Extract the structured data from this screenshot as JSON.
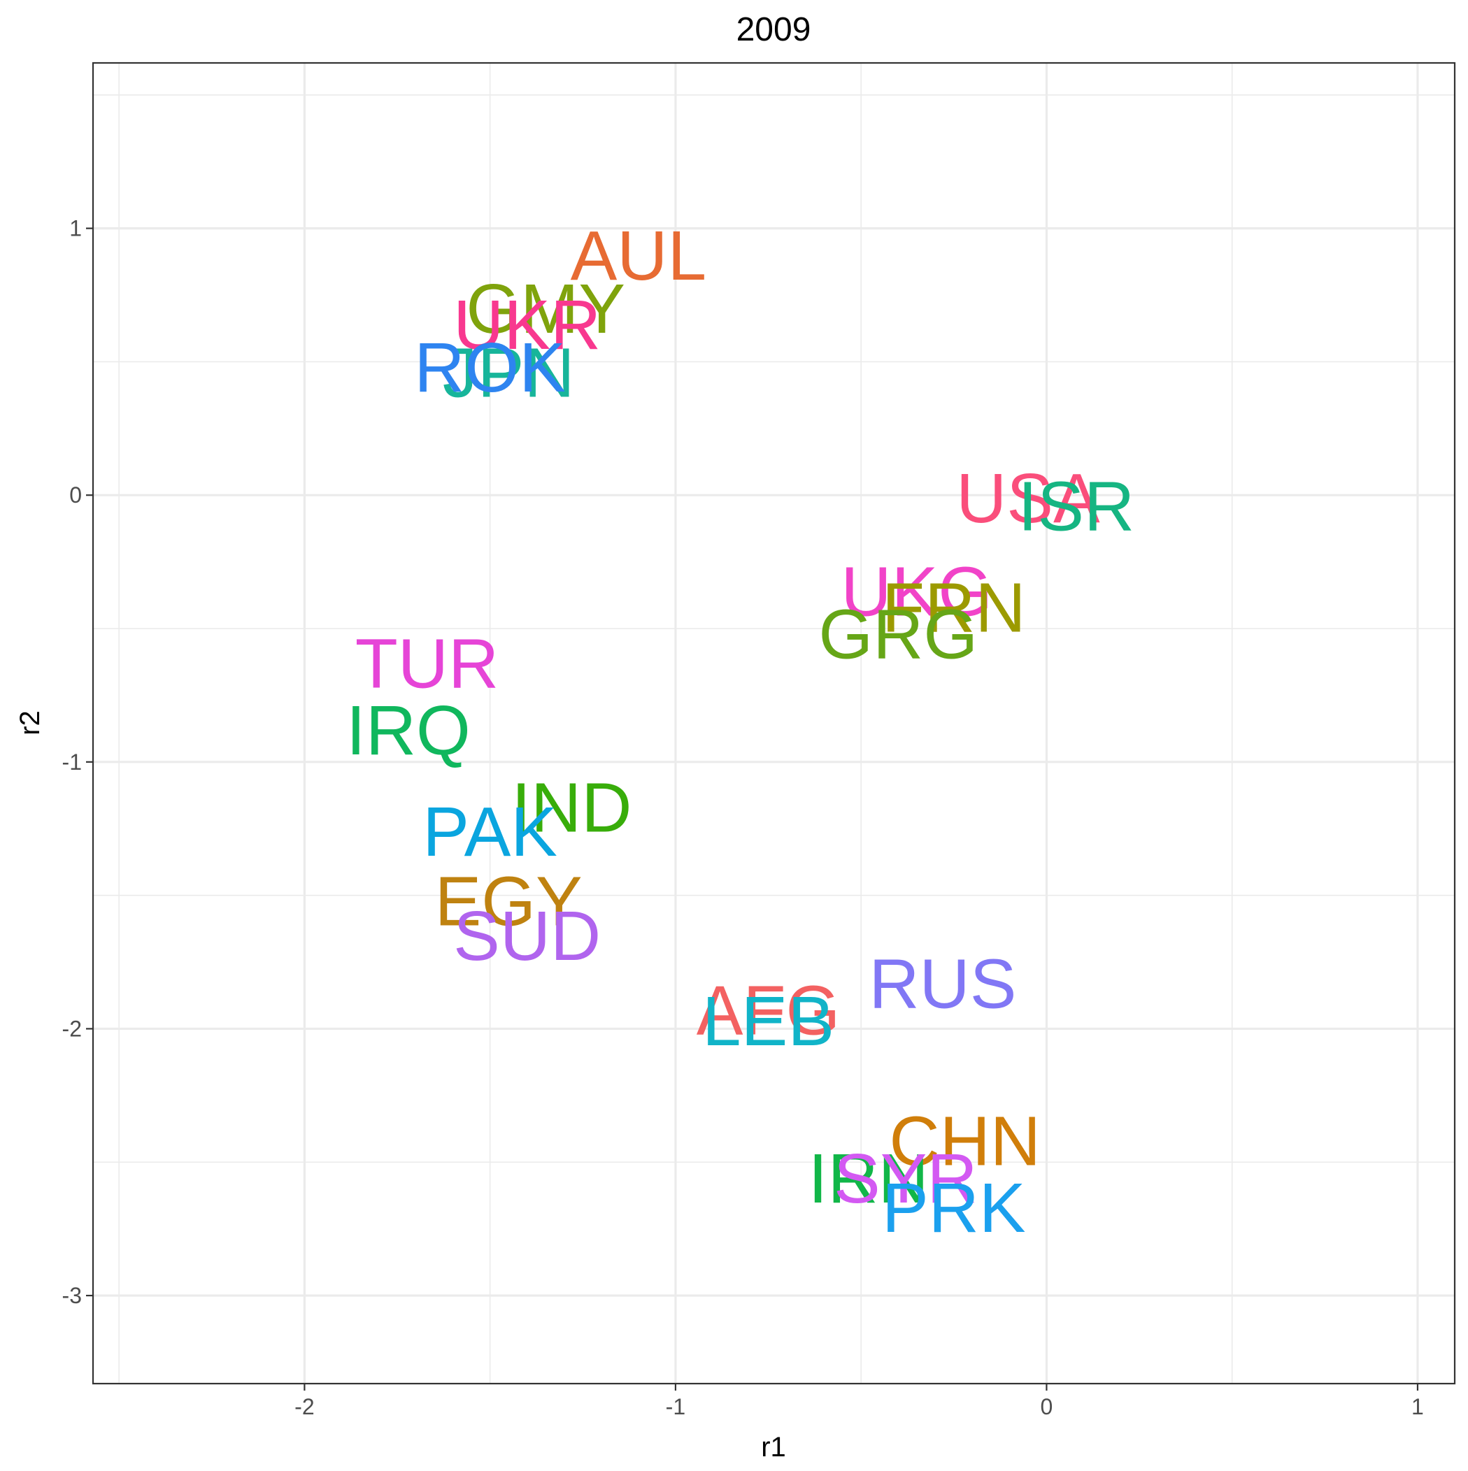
{
  "chart_data": {
    "type": "scatter",
    "title": "2009",
    "xlabel": "r1",
    "ylabel": "r2",
    "xlim": [
      -2.57,
      1.1
    ],
    "ylim": [
      -3.33,
      1.62
    ],
    "x_ticks": [
      -2,
      -1,
      0,
      1
    ],
    "y_ticks": [
      -3,
      -2,
      -1,
      0,
      1
    ],
    "x_tick_labels": [
      "-2",
      "-1",
      "0",
      "1"
    ],
    "y_tick_labels": [
      "-3",
      "-2",
      "-1",
      "0",
      "1"
    ],
    "grid": true,
    "legend": "none",
    "points": [
      {
        "label": "AUL",
        "x": -1.1,
        "y": 0.9,
        "color": "#E76B33"
      },
      {
        "label": "GMY",
        "x": -1.35,
        "y": 0.7,
        "color": "#7FA30C"
      },
      {
        "label": "UKR",
        "x": -1.4,
        "y": 0.64,
        "color": "#F8388F"
      },
      {
        "label": "JPN",
        "x": -1.45,
        "y": 0.46,
        "color": "#17B59A"
      },
      {
        "label": "ROK",
        "x": -1.5,
        "y": 0.48,
        "color": "#2E84F0"
      },
      {
        "label": "USA",
        "x": -0.05,
        "y": -0.01,
        "color": "#FA4E7B"
      },
      {
        "label": "ISR",
        "x": 0.08,
        "y": -0.04,
        "color": "#16B582"
      },
      {
        "label": "UKG",
        "x": -0.35,
        "y": -0.36,
        "color": "#F143C8"
      },
      {
        "label": "FRN",
        "x": -0.25,
        "y": -0.42,
        "color": "#9C9A00"
      },
      {
        "label": "GRG",
        "x": -0.4,
        "y": -0.52,
        "color": "#66A617"
      },
      {
        "label": "TUR",
        "x": -1.67,
        "y": -0.63,
        "color": "#E644D7"
      },
      {
        "label": "IRQ",
        "x": -1.72,
        "y": -0.88,
        "color": "#10B75D"
      },
      {
        "label": "IND",
        "x": -1.28,
        "y": -1.17,
        "color": "#38AD0A"
      },
      {
        "label": "PAK",
        "x": -1.5,
        "y": -1.26,
        "color": "#0AA5DF"
      },
      {
        "label": "EGY",
        "x": -1.45,
        "y": -1.52,
        "color": "#BF8210"
      },
      {
        "label": "SUD",
        "x": -1.4,
        "y": -1.65,
        "color": "#B064EE"
      },
      {
        "label": "RUS",
        "x": -0.28,
        "y": -1.83,
        "color": "#8177F5"
      },
      {
        "label": "AFG",
        "x": -0.75,
        "y": -1.93,
        "color": "#F36161"
      },
      {
        "label": "LEB",
        "x": -0.75,
        "y": -1.97,
        "color": "#11B4C8"
      },
      {
        "label": "CHN",
        "x": -0.22,
        "y": -2.42,
        "color": "#D07E0A"
      },
      {
        "label": "IRN",
        "x": -0.48,
        "y": -2.56,
        "color": "#11B648"
      },
      {
        "label": "SYR",
        "x": -0.38,
        "y": -2.56,
        "color": "#D359F2"
      },
      {
        "label": "PRK",
        "x": -0.25,
        "y": -2.67,
        "color": "#1BA0EE"
      }
    ]
  }
}
